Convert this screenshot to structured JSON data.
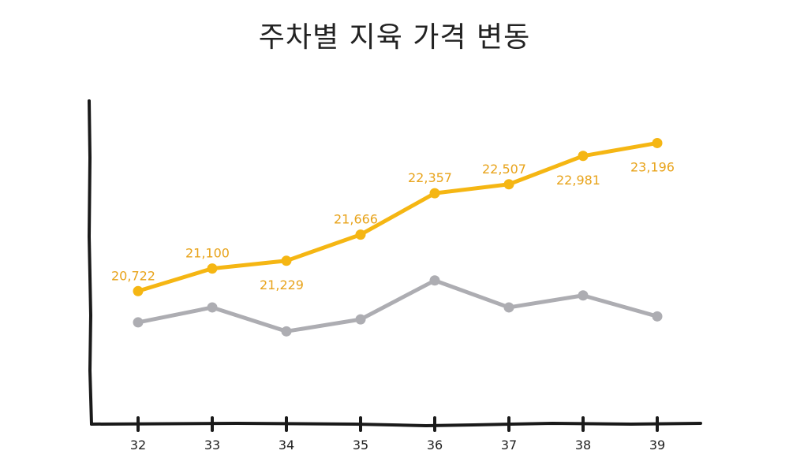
{
  "chart_data": {
    "type": "line",
    "title": "주차별 지육 가격 변동",
    "xlabel": "",
    "ylabel": "",
    "categories": [
      "32",
      "33",
      "34",
      "35",
      "36",
      "37",
      "38",
      "39"
    ],
    "series": [
      {
        "values": [
          20722,
          21100,
          21229,
          21666,
          22357,
          22507,
          22981,
          23196
        ],
        "labels": [
          "20,722",
          "21,100",
          "21,229",
          "21,666",
          "22,357",
          "22,507",
          "22,981",
          "23,196"
        ],
        "label_positions": [
          "above",
          "above",
          "below",
          "above",
          "above",
          "above",
          "below",
          "below"
        ],
        "color": "#F5B613",
        "label_color": "#E8A31A"
      },
      {
        "values": [
          20200,
          20450,
          20050,
          20250,
          20900,
          20450,
          20650,
          20300
        ],
        "color": "#ADADB2"
      }
    ],
    "ylim": [
      18500,
      23900
    ],
    "grid": false,
    "legend": "none",
    "axis_color": "#1A1A1A"
  }
}
